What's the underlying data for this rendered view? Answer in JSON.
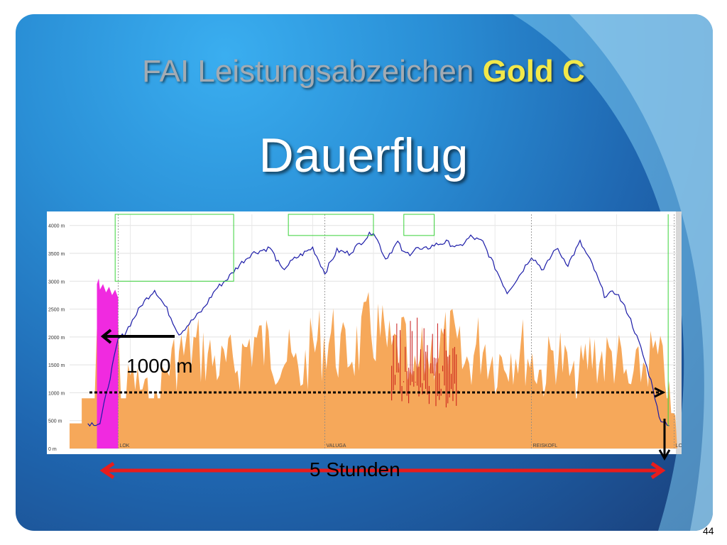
{
  "slide": {
    "title_main": "FAI Leistungsabzeichen ",
    "title_highlight": "Gold C",
    "subtitle": "Dauerflug",
    "page_number": "44"
  },
  "colors": {
    "title_gray": "#a3abb3",
    "title_gold": "#f2e84a",
    "altitude_line": "#1c1ca8",
    "vario_fill": "#f6a85a",
    "tow_fill": "#f02ae0",
    "annotation_red": "#e81c1c"
  },
  "annotations": {
    "altitude_gain_label": "1000 m",
    "duration_label": "5 Stunden"
  },
  "chart_data": {
    "type": "line",
    "y_axis": {
      "ticks": [
        "0 m",
        "500 m",
        "1000 m",
        "1500 m",
        "2000 m",
        "2500 m",
        "3000 m",
        "3500 m",
        "4000 m"
      ],
      "tick_values": [
        0,
        500,
        1000,
        1500,
        2000,
        2500,
        3000,
        3500,
        4000
      ],
      "ylim": [
        0,
        4200
      ]
    },
    "waypoint_labels": [
      "LOK",
      "VALUGA",
      "REISKOFL",
      "LOK"
    ],
    "waypoint_x": [
      0.08,
      0.42,
      0.76,
      0.995
    ],
    "series": [
      {
        "kind": "altitude",
        "x": [
          0.03,
          0.05,
          0.08,
          0.09,
          0.12,
          0.14,
          0.16,
          0.18,
          0.22,
          0.24,
          0.26,
          0.28,
          0.3,
          0.33,
          0.35,
          0.37,
          0.4,
          0.42,
          0.44,
          0.46,
          0.48,
          0.5,
          0.52,
          0.54,
          0.55,
          0.56,
          0.57,
          0.58,
          0.6,
          0.62,
          0.64,
          0.66,
          0.68,
          0.7,
          0.72,
          0.74,
          0.76,
          0.78,
          0.8,
          0.82,
          0.84,
          0.86,
          0.88,
          0.9,
          0.92,
          0.94,
          0.96,
          0.97,
          0.99
        ],
        "y": [
          450,
          450,
          1950,
          2050,
          2600,
          2850,
          2500,
          2050,
          2500,
          2850,
          3050,
          3300,
          3500,
          3600,
          3200,
          3400,
          3600,
          3150,
          3550,
          3500,
          3700,
          3900,
          3400,
          3700,
          3500,
          3500,
          3600,
          3550,
          3650,
          3700,
          3600,
          3800,
          3700,
          3250,
          2800,
          3100,
          3450,
          3200,
          3600,
          3300,
          3700,
          3300,
          2750,
          2800,
          2400,
          1800,
          1100,
          550,
          400
        ]
      },
      {
        "kind": "vario_envelope",
        "x": [
          0.0,
          0.04,
          0.045,
          0.08,
          0.085,
          0.1,
          0.14,
          0.16,
          0.18,
          0.2,
          0.22,
          0.25,
          0.28,
          0.3,
          0.32,
          0.35,
          0.38,
          0.4,
          0.43,
          0.45,
          0.48,
          0.5,
          0.53,
          0.55,
          0.56,
          0.58,
          0.6,
          0.63,
          0.65,
          0.68,
          0.7,
          0.73,
          0.75,
          0.78,
          0.8,
          0.83,
          0.86,
          0.88,
          0.9,
          0.92,
          0.94,
          0.96,
          0.98,
          0.99,
          1.0
        ],
        "y": [
          450,
          450,
          2950,
          2900,
          900,
          1800,
          1100,
          2000,
          2300,
          2500,
          2400,
          2000,
          2200,
          2700,
          2500,
          2400,
          1800,
          2500,
          2800,
          2300,
          2600,
          3000,
          2300,
          2600,
          1500,
          2200,
          2500,
          2600,
          2000,
          2700,
          2100,
          2500,
          2400,
          1800,
          2500,
          1600,
          2400,
          2200,
          2300,
          1500,
          2000,
          2300,
          1900,
          900,
          450
        ]
      },
      {
        "kind": "tow",
        "x": [
          0.045,
          0.048,
          0.05,
          0.055,
          0.06,
          0.065,
          0.07,
          0.075,
          0.08
        ],
        "y": [
          2950,
          3050,
          2850,
          2950,
          2800,
          2900,
          2750,
          2850,
          2700
        ]
      }
    ]
  }
}
